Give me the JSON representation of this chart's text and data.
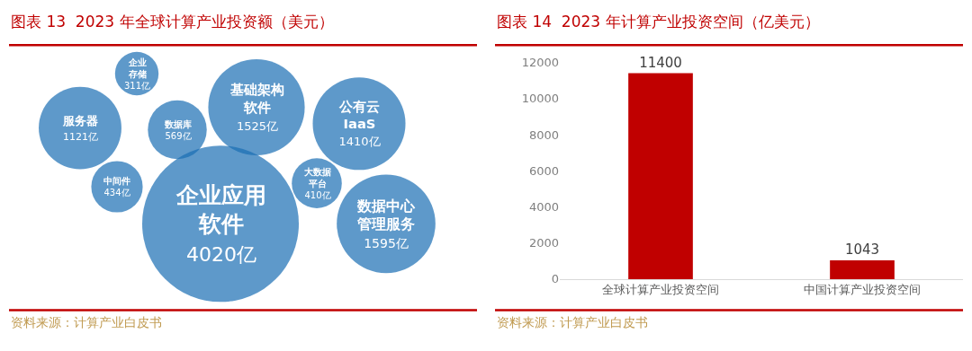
{
  "chart_data": [
    {
      "type": "other",
      "title": "图表 13  2023 年全球计算产业投资额（美元）",
      "categories": [
        "企业存储",
        "服务器",
        "数据库",
        "基础架构软件",
        "公有云IaaS",
        "中间件",
        "企业应用软件",
        "大数据平台",
        "数据中心管理服务"
      ],
      "values": [
        311,
        1121,
        569,
        1525,
        1410,
        434,
        4020,
        410,
        1595
      ],
      "value_labels": [
        "311亿",
        "1121亿",
        "569亿",
        "1525亿",
        "1410亿",
        "434亿",
        "4020亿",
        "410亿",
        "1595亿"
      ],
      "color": "#1a6db3",
      "annotations": [
        "资料来源：计算产业白皮书"
      ]
    },
    {
      "type": "bar",
      "title": "图表 14  2023 年计算产业投资空间（亿美元）",
      "categories": [
        "全球计算产业投资空间",
        "中国计算产业投资空间"
      ],
      "values": [
        11400,
        1043
      ],
      "color": "#c00000",
      "ylim": [
        0,
        12000
      ],
      "yticks": [
        0,
        2000,
        4000,
        6000,
        8000,
        10000,
        12000
      ],
      "data_labels": true,
      "grid": false,
      "annotations": [
        "资料来源：计算产业白皮书"
      ]
    }
  ]
}
